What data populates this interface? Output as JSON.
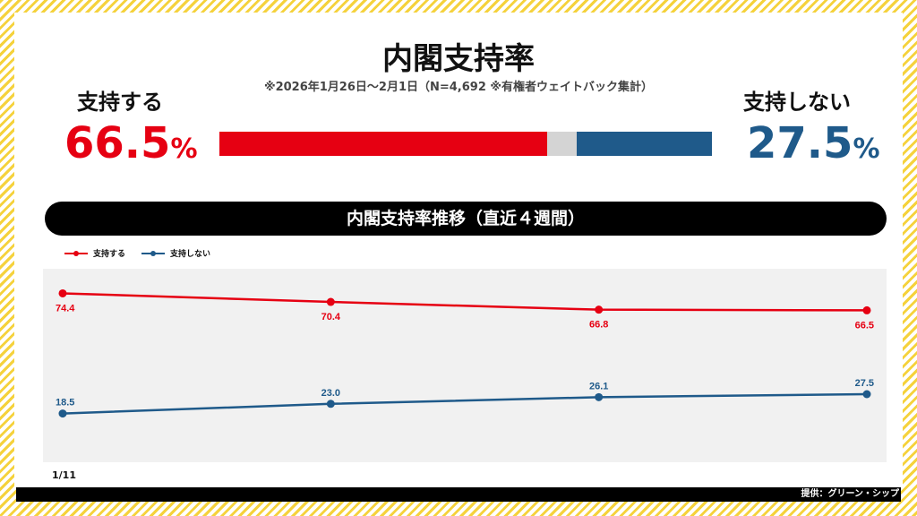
{
  "title": "内閣支持率",
  "subtitle": "※2026年1月26日～2月1日（N=4,692 ※有権者ウェイトバック集計）",
  "summary": {
    "support_label": "支持する",
    "support_value": "66.5",
    "support_unit": "%",
    "nonsupport_label": "支持しない",
    "nonsupport_value": "27.5",
    "nonsupport_unit": "%",
    "bar": {
      "support": 66.5,
      "other": 6.0,
      "nonsupport": 27.5
    }
  },
  "colors": {
    "support": "#e60012",
    "nonsupport": "#1f5a8a",
    "other": "#d4d4d4",
    "accent": "#f5d23c"
  },
  "trend_banner": "内閣支持率推移（直近４週間）",
  "first_date_label": "1/11",
  "credit": "提供：グリーン・シップ",
  "chart_data": {
    "type": "line",
    "title": "内閣支持率推移（直近４週間）",
    "x": [
      "1/11",
      "",
      "",
      ""
    ],
    "ylim": [
      0,
      80
    ],
    "grid": false,
    "legend": "top-left",
    "series": [
      {
        "name": "支持する",
        "color": "#e60012",
        "values": [
          74.4,
          70.4,
          66.8,
          66.5
        ]
      },
      {
        "name": "支持しない",
        "color": "#1f5a8a",
        "values": [
          18.5,
          23.0,
          26.1,
          27.5
        ]
      }
    ]
  }
}
